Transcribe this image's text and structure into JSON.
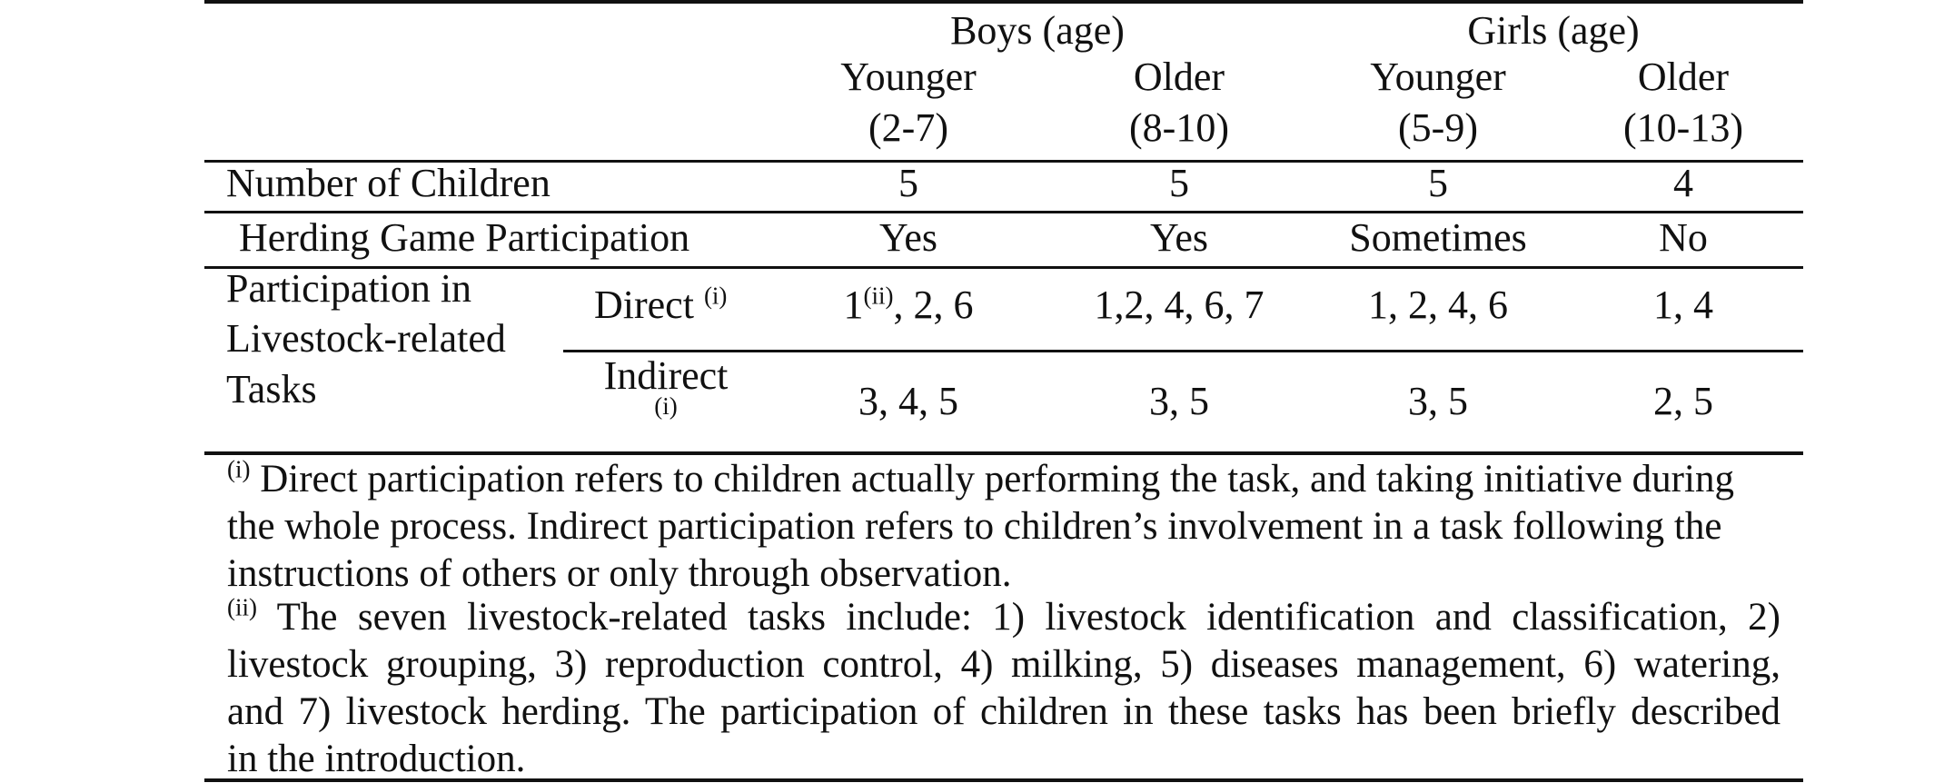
{
  "table": {
    "groups": {
      "boys": "Boys (age)",
      "girls": "Girls (age)"
    },
    "columns": {
      "boys_younger": {
        "label": "Younger",
        "range": "(2-7)"
      },
      "boys_older": {
        "label": "Older",
        "range": "(8-10)"
      },
      "girls_younger": {
        "label": "Younger",
        "range": "(5-9)"
      },
      "girls_older": {
        "label": "Older",
        "range": "(10-13)"
      }
    },
    "rows": {
      "number_of_children": {
        "label": "Number of Children",
        "values": [
          "5",
          "5",
          "5",
          "4"
        ]
      },
      "herding_game": {
        "label": "Herding Game Participation",
        "values": [
          "Yes",
          "Yes",
          "Sometimes",
          "No"
        ]
      },
      "participation": {
        "label_line1": "Participation in",
        "label_line2": "Livestock-related",
        "label_line3": "Tasks",
        "direct": {
          "label": "Direct",
          "marker": "(i)",
          "values": [
            "1",
            "1,2, 4, 6, 7",
            "1, 2, 4, 6",
            "1, 4"
          ],
          "first_value_marker": "(ii)",
          "first_value_suffix": ", 2, 6"
        },
        "indirect": {
          "label": "Indirect",
          "marker": "(i)",
          "values": [
            "3, 4, 5",
            "3, 5",
            "3, 5",
            "2, 5"
          ]
        }
      }
    }
  },
  "footnotes": {
    "note1": {
      "marker": "(i)",
      "line1": "Direct participation refers to children actually performing the task, and taking initiative during",
      "line2": "the whole process. Indirect participation refers to children’s involvement in a task following the",
      "line3": "instructions of others or only through observation."
    },
    "note2": {
      "marker": "(ii)",
      "line1": "The seven livestock-related tasks include: 1) livestock identification and classification, 2)",
      "line2": "livestock grouping, 3) reproduction control, 4) milking, 5) diseases management, 6) watering,",
      "line3": "and 7) livestock herding. The participation of children in these tasks has been briefly described",
      "line4": "in the introduction."
    }
  }
}
